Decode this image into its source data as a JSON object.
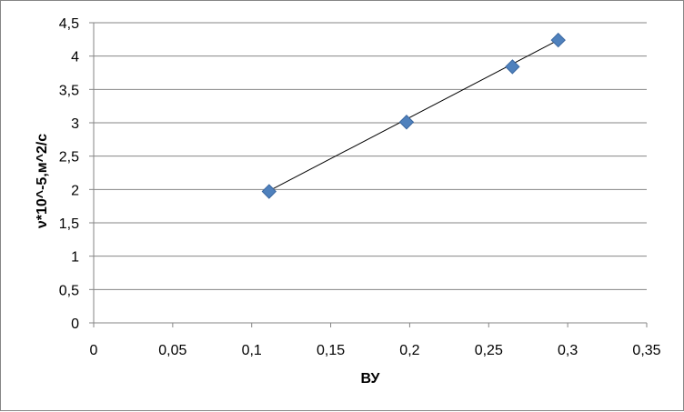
{
  "chart_data": {
    "type": "scatter",
    "title": "",
    "xlabel": "ВУ",
    "ylabel": "ν*10^-5,м^2/c",
    "xlim": [
      0,
      0.35
    ],
    "ylim": [
      0,
      4.5
    ],
    "x_ticks": [
      0,
      0.05,
      0.1,
      0.15,
      0.2,
      0.25,
      0.3,
      0.35
    ],
    "x_tick_labels": [
      "0",
      "0,05",
      "0,1",
      "0,15",
      "0,2",
      "0,25",
      "0,3",
      "0,35"
    ],
    "y_ticks": [
      0,
      0.5,
      1,
      1.5,
      2,
      2.5,
      3,
      3.5,
      4,
      4.5
    ],
    "y_tick_labels": [
      "0",
      "0,5",
      "1",
      "1,5",
      "2",
      "2,5",
      "3",
      "3,5",
      "4",
      "4,5"
    ],
    "grid": "horizontal",
    "legend": "none",
    "series": [
      {
        "x": [
          0.111,
          0.198,
          0.265,
          0.294
        ],
        "y": [
          1.97,
          3.01,
          3.84,
          4.24
        ],
        "marker": "diamond",
        "color": "#4F81BD"
      }
    ],
    "trendline": {
      "type": "linear",
      "x": [
        0.111,
        0.294
      ],
      "y": [
        1.98,
        4.24
      ],
      "color": "#000000"
    }
  }
}
